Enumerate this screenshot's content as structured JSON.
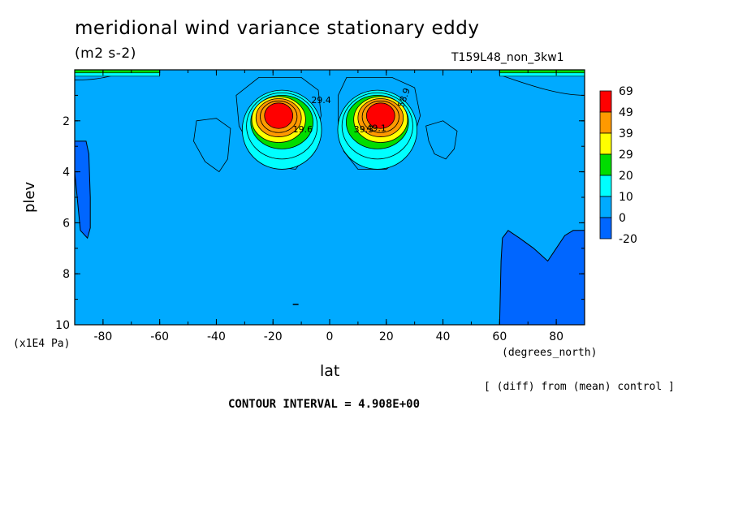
{
  "chart_data": {
    "type": "heatmap",
    "title": "meridional wind variance  stationary eddy",
    "units": "(m2 s-2)",
    "run_label": "T159L48_non_3kw1",
    "xlabel": "lat",
    "ylabel": "plev",
    "x_unit_label": "(degrees_north)",
    "y_unit_label": "(x1E4 Pa)",
    "xlim": [
      -90,
      90
    ],
    "ylim": [
      10,
      0
    ],
    "x_ticks": [
      -80,
      -60,
      -40,
      -20,
      0,
      20,
      40,
      60,
      80
    ],
    "x_tick_labels": [
      "-80",
      "-60",
      "-40",
      "-20",
      "0",
      "20",
      "40",
      "60",
      "80"
    ],
    "y_ticks": [
      2,
      4,
      6,
      8,
      10
    ],
    "y_tick_labels": [
      "2",
      "4",
      "6",
      "8",
      "10"
    ],
    "colorbar_levels": [
      "69",
      "49",
      "39",
      "29",
      "20",
      "10",
      "0",
      "-20"
    ],
    "colorbar_colors": [
      "#ff0000",
      "#ff9900",
      "#ffff00",
      "#00dd00",
      "#00ffff",
      "#00aaff",
      "#0066ff"
    ],
    "background_color": "#00aaff",
    "features": [
      {
        "name": "southern maximum",
        "lat": -18,
        "plev": 1.8,
        "value": 69
      },
      {
        "name": "northern maximum",
        "lat": 18,
        "plev": 1.8,
        "value": 69
      },
      {
        "name": "southern polar minimum",
        "lat_range": [
          -90,
          -84
        ],
        "plev_range": [
          2.8,
          6.5
        ],
        "value": -20
      },
      {
        "name": "northern polar minimum",
        "lat_range": [
          60,
          90
        ],
        "plev_range": [
          6.3,
          10
        ],
        "value": -20
      }
    ],
    "contour_labels": [
      "19.6",
      "29.4",
      "39.3",
      "49.1",
      "58.9"
    ],
    "note": "[ (diff) from (mean) control ]",
    "contour_interval": "CONTOUR INTERVAL = 4.908E+00"
  }
}
